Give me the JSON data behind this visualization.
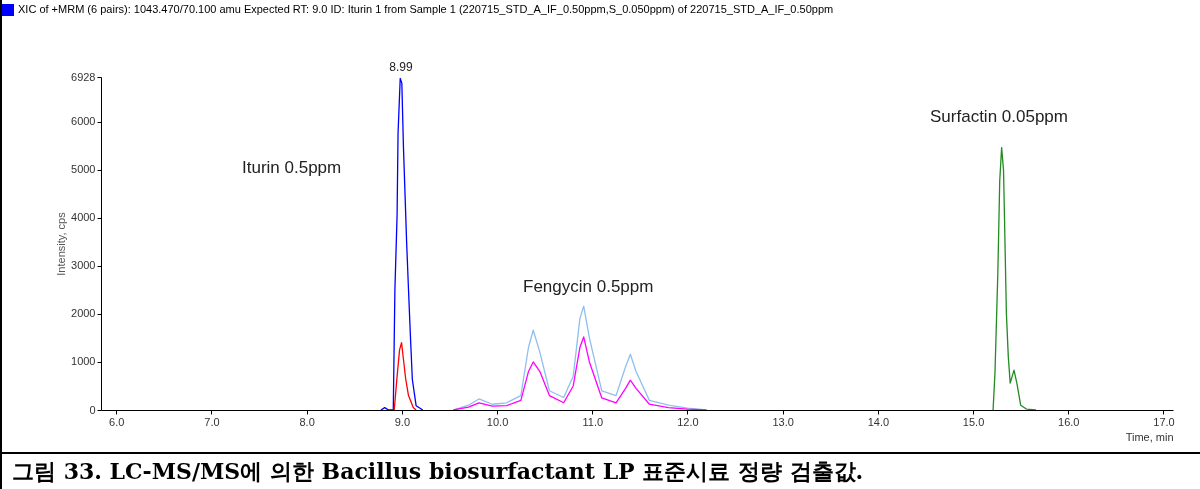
{
  "chart_data": {
    "type": "line",
    "xlabel": "Time, min",
    "ylabel": "Intensity, cps",
    "xlim": [
      5.84,
      17.1
    ],
    "ylim": [
      0,
      6928
    ],
    "xticks": [
      {
        "value": 6,
        "label": "6.0"
      },
      {
        "value": 7,
        "label": "7.0"
      },
      {
        "value": 8,
        "label": "8.0"
      },
      {
        "value": 9,
        "label": "9.0"
      },
      {
        "value": 10,
        "label": "10.0"
      },
      {
        "value": 11,
        "label": "11.0"
      },
      {
        "value": 12,
        "label": "12.0"
      },
      {
        "value": 13,
        "label": "13.0"
      },
      {
        "value": 14,
        "label": "14.0"
      },
      {
        "value": 15,
        "label": "15.0"
      },
      {
        "value": 16,
        "label": "16.0"
      },
      {
        "value": 17,
        "label": "17.0"
      }
    ],
    "yticks": [
      0,
      1000,
      2000,
      3000,
      4000,
      5000,
      6000,
      6928
    ],
    "grid": false,
    "marker": "none",
    "line_style": "solid",
    "legend": "top left",
    "series": [
      {
        "name": "XIC of +MRM (6 pairs): 1043.470/70.100 amu Expected RT: 9.0 ID: Iturin 1 from Sample 1 (220715_STD_A_IF_0.50ppm,S_0.050ppm) of 220715_STD_A_IF_0.50ppm",
        "color": "#0000ff",
        "x": [
          8.78,
          8.82,
          8.86,
          8.91,
          8.927,
          8.95,
          8.96,
          8.983,
          9.0,
          9.017,
          9.034,
          9.05,
          9.07,
          9.09,
          9.11,
          9.15,
          9.22
        ],
        "values": [
          0,
          50,
          0,
          0,
          2500,
          4050,
          5750,
          6900,
          6800,
          5460,
          4460,
          3500,
          2500,
          1540,
          640,
          90,
          0
        ]
      },
      {
        "color": "#ff0000",
        "x": [
          8.92,
          8.95,
          8.976,
          8.997,
          9.017,
          9.04,
          9.07,
          9.12,
          9.15
        ],
        "values": [
          0,
          700,
          1250,
          1400,
          1050,
          650,
          300,
          50,
          0
        ]
      },
      {
        "color": "#8fbfef",
        "x": [
          9.54,
          9.7,
          9.81,
          9.95,
          10.1,
          10.25,
          10.33,
          10.38,
          10.45,
          10.55,
          10.7,
          10.8,
          10.87,
          10.91,
          10.97,
          11.1,
          11.25,
          11.35,
          11.4,
          11.46,
          11.6,
          11.8,
          12.0,
          12.2
        ],
        "values": [
          0,
          100,
          230,
          120,
          150,
          300,
          1300,
          1660,
          1200,
          400,
          260,
          700,
          1900,
          2160,
          1500,
          400,
          300,
          900,
          1160,
          800,
          200,
          100,
          40,
          0
        ]
      },
      {
        "color": "#ff00ff",
        "x": [
          9.54,
          9.7,
          9.81,
          9.95,
          10.1,
          10.25,
          10.33,
          10.38,
          10.45,
          10.55,
          10.7,
          10.8,
          10.87,
          10.91,
          10.97,
          11.1,
          11.25,
          11.35,
          11.4,
          11.46,
          11.6,
          11.8,
          12.0,
          12.2
        ],
        "values": [
          0,
          60,
          150,
          80,
          90,
          200,
          800,
          1000,
          800,
          300,
          150,
          500,
          1300,
          1520,
          1000,
          250,
          150,
          450,
          620,
          450,
          120,
          50,
          20,
          0
        ]
      },
      {
        "color": "#228b22",
        "x": [
          15.21,
          15.23,
          15.26,
          15.28,
          15.3,
          15.32,
          15.33,
          15.35,
          15.37,
          15.39,
          15.43,
          15.46,
          15.5,
          15.56,
          15.66
        ],
        "values": [
          0,
          770,
          2840,
          4770,
          5460,
          4980,
          4010,
          2010,
          1110,
          560,
          830,
          560,
          100,
          20,
          0
        ]
      }
    ],
    "annotations": [
      {
        "text": "8.99",
        "x": 8.99,
        "y": 6928
      },
      "Iturin 0.5ppm",
      "Fengycin 0.5ppm",
      "Surfactin 0.05ppm",
      "그림 33. LC-MS/MS에 의한 Bacillus biosurfactant LP 표준시료 정량 검출값."
    ]
  }
}
